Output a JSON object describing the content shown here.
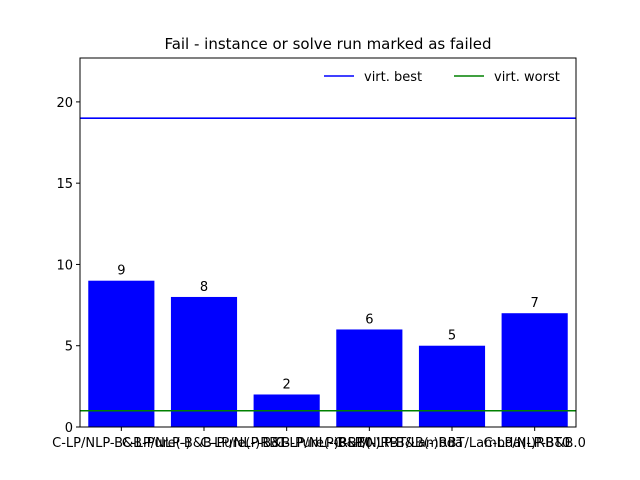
{
  "chart_data": {
    "type": "bar",
    "title": "Fail - instance or solve run marked as failed",
    "xlabel": "",
    "ylabel": "",
    "categories": [
      "C-LP/NLP-B&B-Pure(-)",
      "C-LP/NLP-B&B-Pure(-)RBT",
      "C-LP/NLP-B&B-Pure(-)RBT0",
      "C-LP/NLP-B&B(-)RBT/Lambda",
      "C-LP/NLP-B&B(-)RBT/Lambda(-)RBT0",
      "C-LP/NLP-B&B.0"
    ],
    "values": [
      9,
      8,
      2,
      6,
      5,
      7
    ],
    "ylim": [
      0,
      22.7
    ],
    "yticks": [
      0,
      5,
      10,
      15,
      20
    ],
    "bar_color": "#0000ff",
    "reference_lines": [
      {
        "name": "virt. best",
        "value": 19,
        "color": "#0000ff"
      },
      {
        "name": "virt. worst",
        "value": 1,
        "color": "#008000"
      }
    ],
    "legend_position": "top-right",
    "grid": false
  }
}
